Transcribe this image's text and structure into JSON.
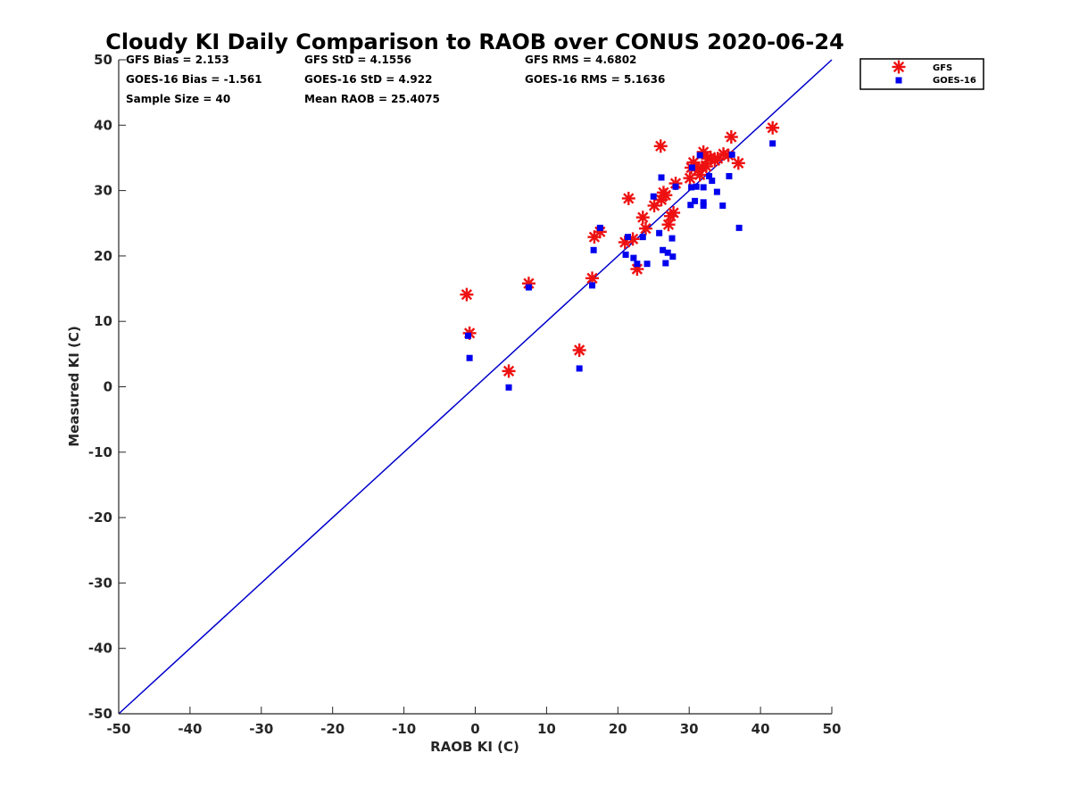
{
  "chart_data": {
    "type": "scatter",
    "title": "Cloudy KI Daily Comparison to RAOB over CONUS 2020-06-24",
    "xlabel": "RAOB KI (C)",
    "ylabel": "Measured KI (C)",
    "xlim": [
      -50,
      50
    ],
    "ylim": [
      -50,
      50
    ],
    "xticks": [
      "-50",
      "-40",
      "-30",
      "-20",
      "-10",
      "0",
      "10",
      "20",
      "30",
      "40",
      "50"
    ],
    "yticks": [
      "-50",
      "-40",
      "-30",
      "-20",
      "-10",
      "0",
      "10",
      "20",
      "30",
      "40",
      "50"
    ],
    "grid": false,
    "legend_position": "top-right, outside plot",
    "reference_line": {
      "from": [
        -50,
        -50
      ],
      "to": [
        50,
        50
      ],
      "color": "#0000cc"
    },
    "stats": [
      [
        "GFS Bias = 2.153",
        "GFS StD = 4.1556",
        "GFS RMS = 4.6802"
      ],
      [
        "GOES-16 Bias = -1.561",
        "GOES-16 StD = 4.922",
        "GOES-16 RMS = 5.1636"
      ],
      [
        "Sample Size = 40",
        "Mean RAOB = 25.4075",
        ""
      ]
    ],
    "series": [
      {
        "name": "GFS",
        "marker": "asterisk",
        "color": "#ee1111",
        "points": [
          [
            -1.2,
            14.1
          ],
          [
            -0.8,
            8.2
          ],
          [
            4.7,
            2.4
          ],
          [
            7.5,
            15.8
          ],
          [
            14.6,
            5.6
          ],
          [
            16.4,
            16.6
          ],
          [
            16.7,
            22.9
          ],
          [
            17.5,
            23.7
          ],
          [
            21.0,
            22.1
          ],
          [
            21.5,
            28.8
          ],
          [
            22.1,
            22.6
          ],
          [
            22.7,
            18.0
          ],
          [
            23.5,
            25.9
          ],
          [
            23.9,
            24.2
          ],
          [
            25.1,
            27.7
          ],
          [
            26.0,
            36.8
          ],
          [
            26.1,
            28.6
          ],
          [
            26.4,
            29.7
          ],
          [
            26.7,
            29.3
          ],
          [
            27.1,
            24.8
          ],
          [
            27.4,
            26.1
          ],
          [
            27.8,
            26.6
          ],
          [
            28.1,
            31.1
          ],
          [
            30.1,
            31.9
          ],
          [
            30.3,
            33.5
          ],
          [
            30.6,
            34.3
          ],
          [
            31.2,
            33.1
          ],
          [
            31.5,
            32.4
          ],
          [
            31.8,
            33.6
          ],
          [
            32.0,
            35.9
          ],
          [
            32.4,
            33.7
          ],
          [
            32.6,
            34.9
          ],
          [
            33.0,
            35.1
          ],
          [
            33.6,
            34.6
          ],
          [
            34.0,
            34.9
          ],
          [
            34.8,
            35.6
          ],
          [
            35.5,
            35.4
          ],
          [
            35.9,
            38.2
          ],
          [
            36.9,
            34.2
          ],
          [
            41.7,
            39.6
          ]
        ]
      },
      {
        "name": "GOES-16",
        "marker": "square",
        "color": "#0000ee",
        "points": [
          [
            -1.0,
            7.8
          ],
          [
            -0.8,
            4.4
          ],
          [
            4.7,
            -0.1
          ],
          [
            7.5,
            15.2
          ],
          [
            14.6,
            2.8
          ],
          [
            16.4,
            15.5
          ],
          [
            16.6,
            20.9
          ],
          [
            17.5,
            24.3
          ],
          [
            21.1,
            20.2
          ],
          [
            21.4,
            22.9
          ],
          [
            22.2,
            19.7
          ],
          [
            22.7,
            18.8
          ],
          [
            23.5,
            22.9
          ],
          [
            24.1,
            18.8
          ],
          [
            25.0,
            29.1
          ],
          [
            25.8,
            23.5
          ],
          [
            26.1,
            32.0
          ],
          [
            26.3,
            20.9
          ],
          [
            26.7,
            18.9
          ],
          [
            27.0,
            20.5
          ],
          [
            27.6,
            22.7
          ],
          [
            27.7,
            19.9
          ],
          [
            28.1,
            30.6
          ],
          [
            30.2,
            27.8
          ],
          [
            30.3,
            30.5
          ],
          [
            30.4,
            33.5
          ],
          [
            30.8,
            28.4
          ],
          [
            31.0,
            30.6
          ],
          [
            31.5,
            35.4
          ],
          [
            32.0,
            30.5
          ],
          [
            32.0,
            28.2
          ],
          [
            32.0,
            27.7
          ],
          [
            32.8,
            32.2
          ],
          [
            33.2,
            31.5
          ],
          [
            33.9,
            29.8
          ],
          [
            34.7,
            27.7
          ],
          [
            35.6,
            32.2
          ],
          [
            36.0,
            35.5
          ],
          [
            37.0,
            24.3
          ],
          [
            41.7,
            37.2
          ]
        ]
      }
    ]
  }
}
